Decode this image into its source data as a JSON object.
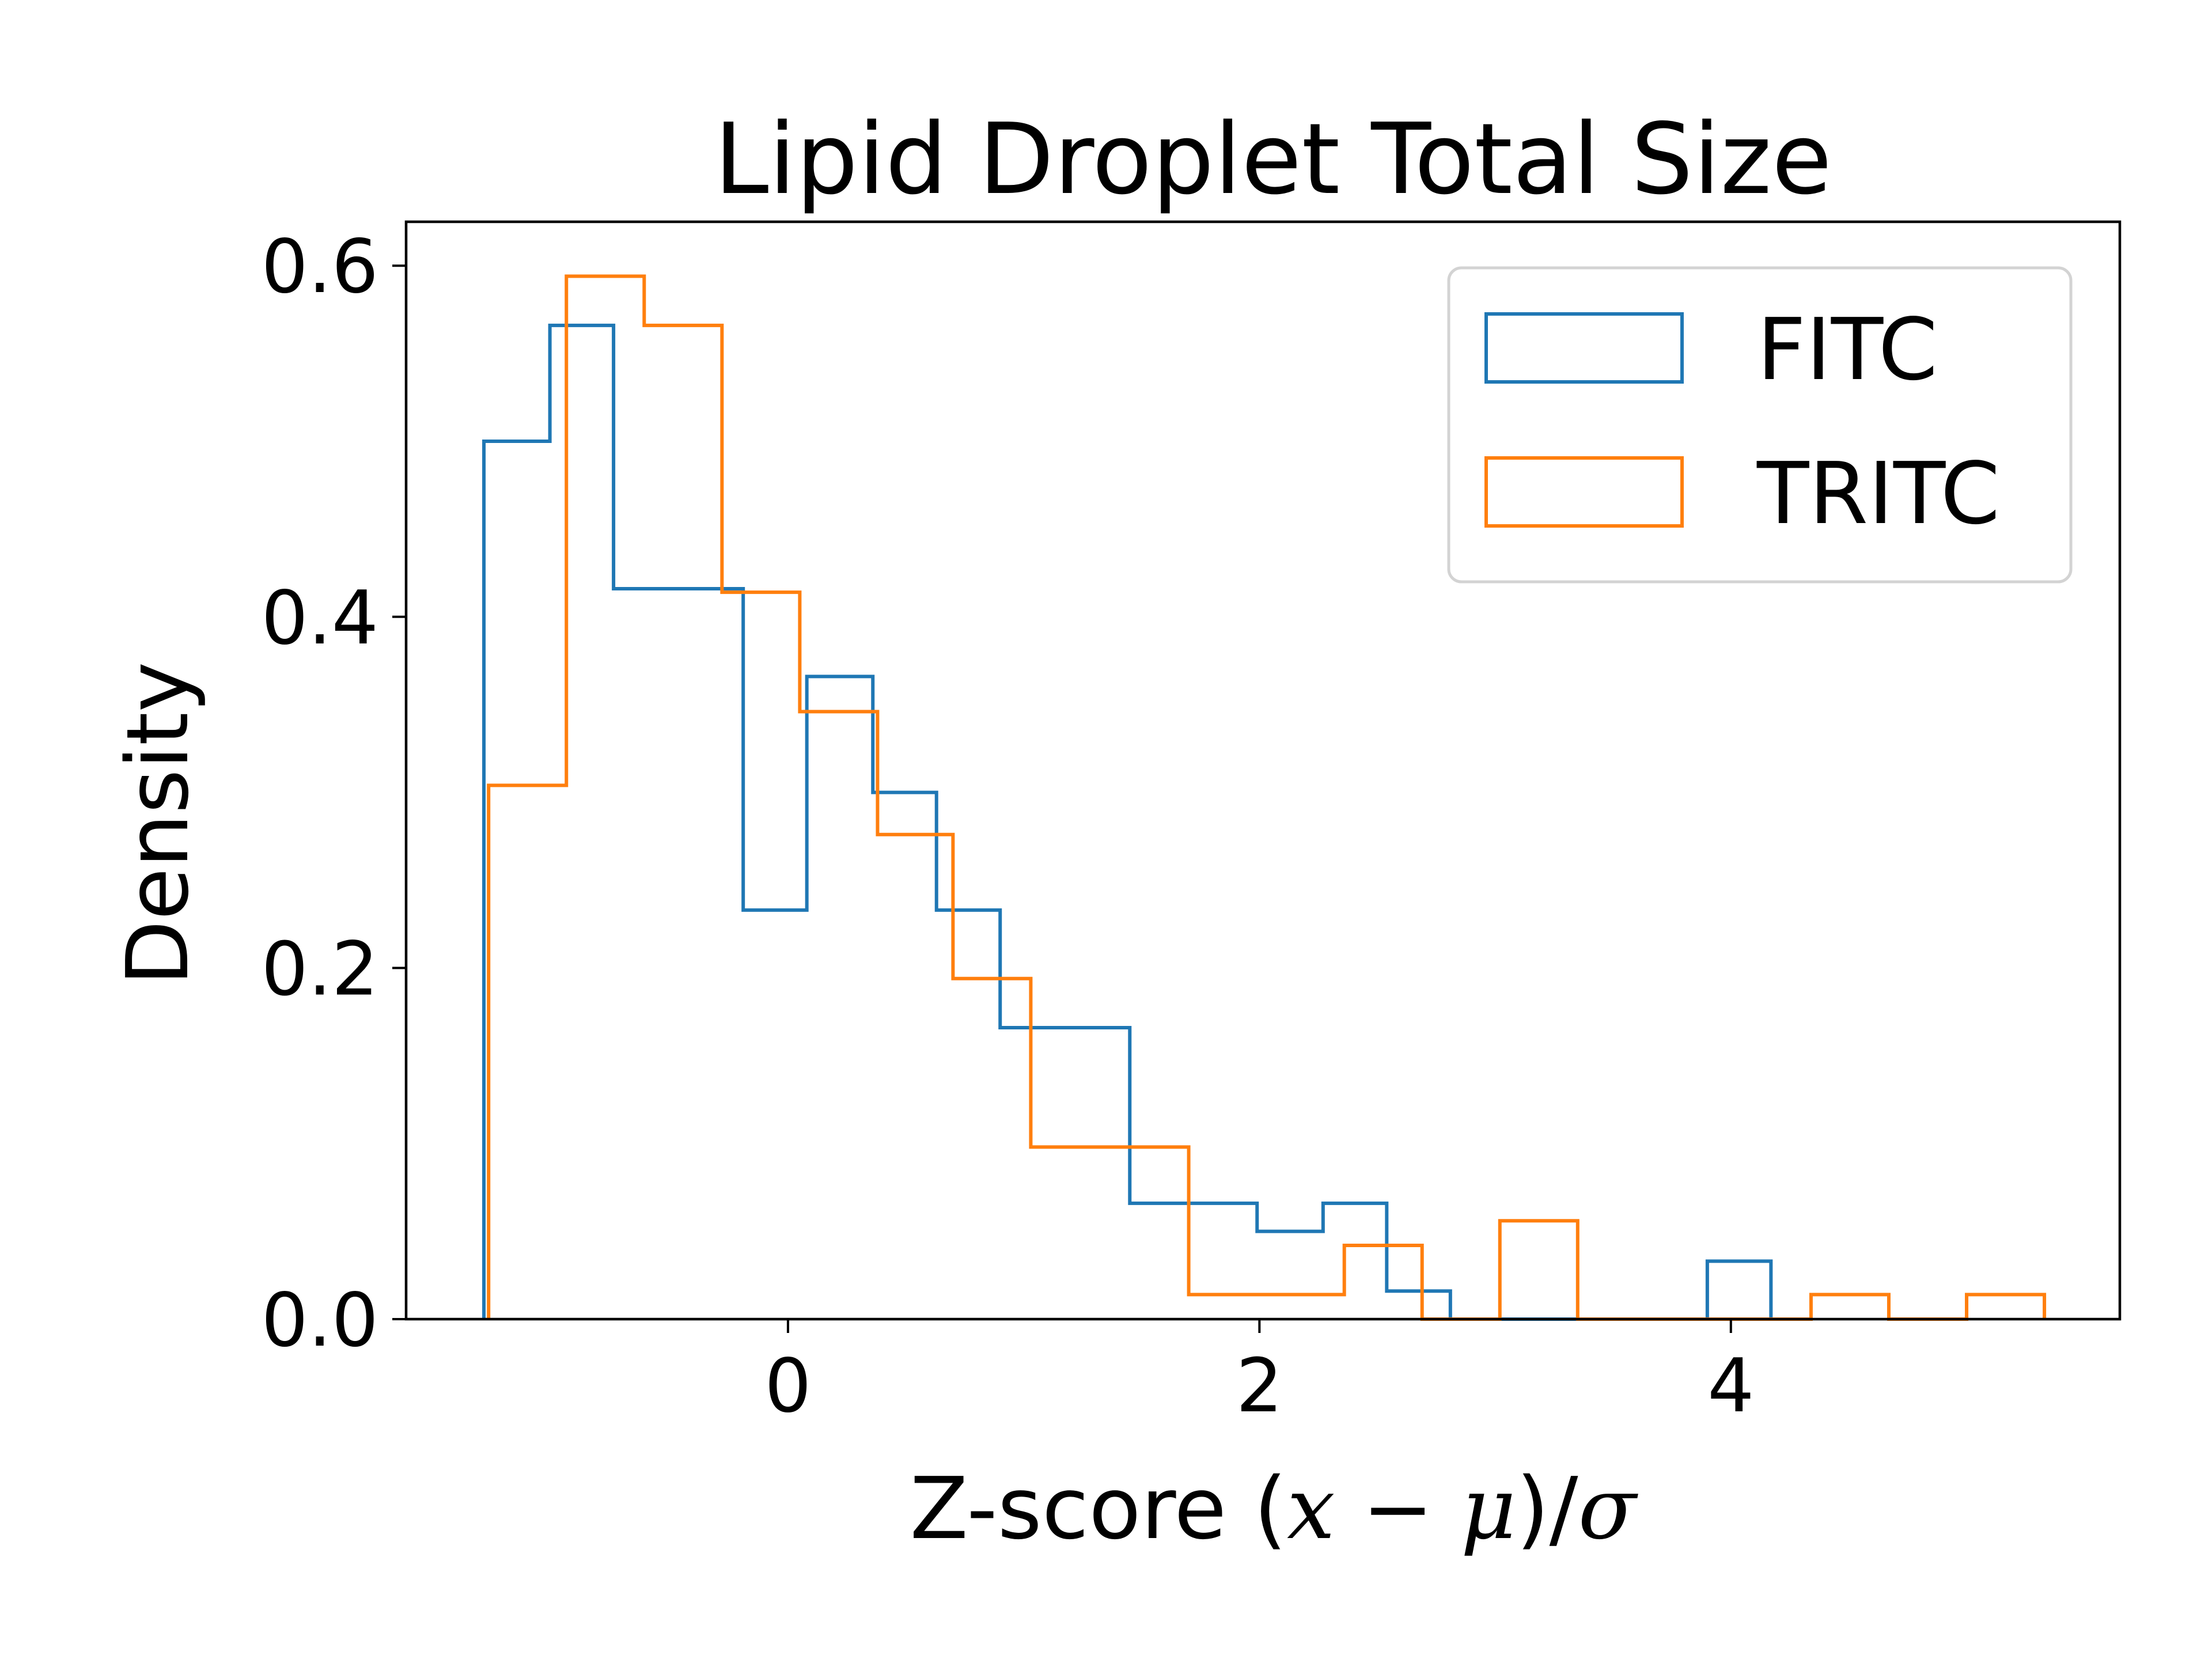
{
  "chart_data": {
    "type": "histogram",
    "title": "Lipid Droplet Total Size",
    "xlabel": "Z-score (x − μ)/σ",
    "ylabel": "Density",
    "xlim": [
      -1.62,
      5.65
    ],
    "ylim": [
      0,
      0.625
    ],
    "xticks": [
      0,
      2,
      4
    ],
    "xtick_labels": [
      "0",
      "2",
      "4"
    ],
    "yticks": [
      0.0,
      0.2,
      0.4,
      0.6
    ],
    "ytick_labels": [
      "0.0",
      "0.2",
      "0.4",
      "0.6"
    ],
    "grid": false,
    "legend_position": "top-right",
    "series": [
      {
        "name": "FITC",
        "color": "#1f77b4",
        "histtype": "step",
        "edges": [
          -1.29,
          -1.01,
          -0.74,
          -0.19,
          0.08,
          0.36,
          0.63,
          0.9,
          1.45,
          1.72,
          1.99,
          2.27,
          2.54,
          2.81,
          3.09,
          3.36,
          3.63,
          3.9,
          4.17
        ],
        "values": [
          0.5,
          0.566,
          0.416,
          0.233,
          0.366,
          0.3,
          0.233,
          0.166,
          0.066,
          0.066,
          0.05,
          0.066,
          0.016,
          0.0,
          0.0,
          0.0,
          0.0,
          0.033
        ]
      },
      {
        "name": "TRITC",
        "color": "#ff7f0e",
        "histtype": "step",
        "edges": [
          -1.27,
          -0.94,
          -0.61,
          -0.28,
          0.05,
          0.38,
          0.7,
          1.03,
          1.7,
          2.36,
          2.69,
          3.02,
          3.35,
          3.68,
          4.01,
          4.34,
          4.67,
          5.0,
          5.33
        ],
        "values": [
          0.304,
          0.594,
          0.566,
          0.414,
          0.346,
          0.276,
          0.194,
          0.098,
          0.014,
          0.042,
          0.0,
          0.056,
          0.0,
          0.0,
          0.0,
          0.014,
          0.0,
          0.014
        ]
      }
    ]
  }
}
